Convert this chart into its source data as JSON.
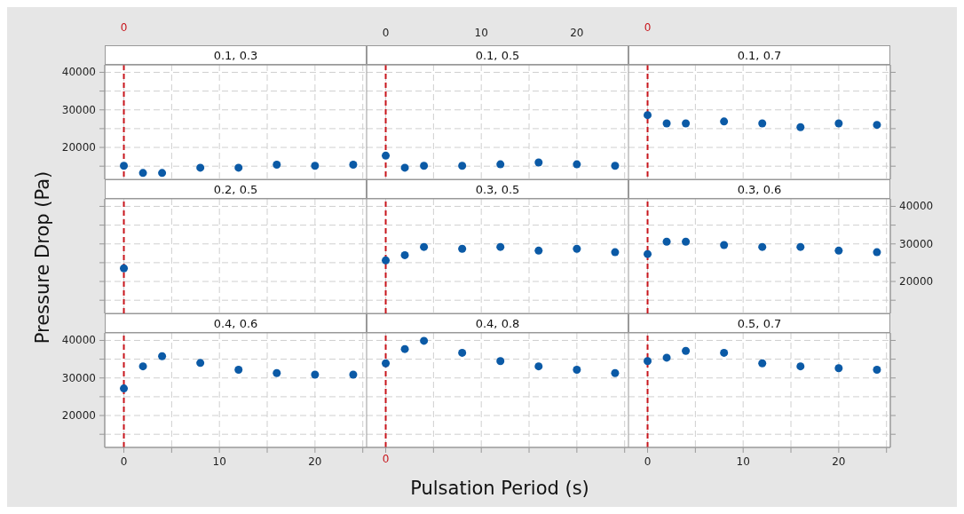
{
  "chart_data": [
    {
      "type": "scatter",
      "title": "0.1, 0.3",
      "x": [
        0,
        2,
        4,
        8,
        12,
        16,
        20,
        24
      ],
      "values": [
        15100,
        13200,
        13200,
        14600,
        14600,
        15400,
        15100,
        15400
      ],
      "color": "#0b5aa6",
      "marker": "circle",
      "xlim": [
        -2,
        25.4
      ],
      "ylim": [
        11500,
        42000
      ],
      "xticks": [
        0,
        {
          "value": 5,
          "label": null
        },
        10,
        {
          "value": 15,
          "label": null
        },
        20,
        {
          "value": 25,
          "label": null
        }
      ],
      "yticks": [
        {
          "value": 15000,
          "label": null
        },
        20000,
        {
          "value": 25000,
          "label": null
        },
        30000,
        {
          "value": 35000,
          "label": null
        },
        40000
      ],
      "grid": true,
      "tick_labels": "y",
      "ref_lines": [
        {
          "axis": "x",
          "value": 0,
          "label": "0",
          "color": "#c8161d",
          "line_style": "dashed"
        }
      ]
    },
    {
      "type": "scatter",
      "title": "0.1, 0.5",
      "x": [
        0,
        2,
        4,
        8,
        12,
        16,
        20,
        24
      ],
      "values": [
        17800,
        14600,
        15100,
        15100,
        15500,
        16000,
        15500,
        15100
      ],
      "color": "#0b5aa6",
      "marker": "circle",
      "xlim": [
        -2,
        25.4
      ],
      "ylim": [
        11500,
        42000
      ],
      "xticks": [
        0,
        {
          "value": 5,
          "label": null
        },
        10,
        {
          "value": 15,
          "label": null
        },
        20,
        {
          "value": 25,
          "label": null
        }
      ],
      "yticks": [
        {
          "value": 15000,
          "label": null
        },
        20000,
        {
          "value": 25000,
          "label": null
        },
        30000,
        {
          "value": 35000,
          "label": null
        },
        40000
      ],
      "grid": true,
      "tick_labels": "x",
      "ref_lines": [
        {
          "axis": "x",
          "value": 0,
          "color": "#c8161d",
          "line_style": "dashed"
        }
      ]
    },
    {
      "type": "scatter",
      "title": "0.1, 0.7",
      "x": [
        0,
        2,
        4,
        8,
        12,
        16,
        20,
        24
      ],
      "values": [
        28600,
        26400,
        26400,
        26900,
        26400,
        25400,
        26400,
        26000
      ],
      "color": "#0b5aa6",
      "marker": "circle",
      "xlim": [
        -2,
        25.4
      ],
      "ylim": [
        11500,
        42000
      ],
      "xticks": [
        0,
        {
          "value": 5,
          "label": null
        },
        10,
        {
          "value": 15,
          "label": null
        },
        20,
        {
          "value": 25,
          "label": null
        }
      ],
      "yticks": [
        {
          "value": 15000,
          "label": null
        },
        20000,
        {
          "value": 25000,
          "label": null
        },
        30000,
        {
          "value": 35000,
          "label": null
        },
        40000
      ],
      "grid": true,
      "tick_labels": false,
      "ref_lines": [
        {
          "axis": "x",
          "value": 0,
          "label": "0",
          "color": "#c8161d",
          "line_style": "dashed"
        }
      ]
    },
    {
      "type": "scatter",
      "title": "0.2, 0.5",
      "ylabel": "Pressure Drop (Pa)",
      "x": [
        0
      ],
      "values": [
        23500
      ],
      "color": "#0b5aa6",
      "marker": "circle",
      "xlim": [
        -2,
        25.4
      ],
      "ylim": [
        11500,
        42000
      ],
      "xticks": [
        0,
        {
          "value": 5,
          "label": null
        },
        10,
        {
          "value": 15,
          "label": null
        },
        20,
        {
          "value": 25,
          "label": null
        }
      ],
      "yticks": [
        {
          "value": 15000,
          "label": null
        },
        20000,
        {
          "value": 25000,
          "label": null
        },
        30000,
        {
          "value": 35000,
          "label": null
        },
        40000
      ],
      "grid": true,
      "tick_labels": false,
      "ref_lines": [
        {
          "axis": "x",
          "value": 0,
          "color": "#c8161d",
          "line_style": "dashed"
        }
      ]
    },
    {
      "type": "scatter",
      "title": "0.3, 0.5",
      "x": [
        0,
        2,
        4,
        8,
        12,
        16,
        20,
        24
      ],
      "values": [
        25600,
        27000,
        29200,
        28700,
        29200,
        28200,
        28700,
        27800
      ],
      "color": "#0b5aa6",
      "marker": "circle",
      "xlim": [
        -2,
        25.4
      ],
      "ylim": [
        11500,
        42000
      ],
      "xticks": [
        0,
        {
          "value": 5,
          "label": null
        },
        10,
        {
          "value": 15,
          "label": null
        },
        20,
        {
          "value": 25,
          "label": null
        }
      ],
      "yticks": [
        {
          "value": 15000,
          "label": null
        },
        20000,
        {
          "value": 25000,
          "label": null
        },
        30000,
        {
          "value": 35000,
          "label": null
        },
        40000
      ],
      "grid": true,
      "tick_labels": false,
      "ref_lines": [
        {
          "axis": "x",
          "value": 0,
          "color": "#c8161d",
          "line_style": "dashed"
        }
      ]
    },
    {
      "type": "scatter",
      "title": "0.3, 0.6",
      "x": [
        0,
        2,
        4,
        8,
        12,
        16,
        20,
        24
      ],
      "values": [
        27300,
        30600,
        30600,
        29700,
        29200,
        29200,
        28200,
        27800
      ],
      "color": "#0b5aa6",
      "marker": "circle",
      "xlim": [
        -2,
        25.4
      ],
      "ylim": [
        11500,
        42000
      ],
      "xticks": [
        0,
        {
          "value": 5,
          "label": null
        },
        10,
        {
          "value": 15,
          "label": null
        },
        20,
        {
          "value": 25,
          "label": null
        }
      ],
      "yticks": [
        {
          "value": 15000,
          "label": null
        },
        20000,
        {
          "value": 25000,
          "label": null
        },
        30000,
        {
          "value": 35000,
          "label": null
        },
        40000
      ],
      "grid": true,
      "tick_labels": "y",
      "ref_lines": [
        {
          "axis": "x",
          "value": 0,
          "color": "#c8161d",
          "line_style": "dashed"
        }
      ]
    },
    {
      "type": "scatter",
      "title": "0.4, 0.6",
      "x": [
        0,
        2,
        4,
        8,
        12,
        16,
        20,
        24
      ],
      "values": [
        27200,
        33100,
        35800,
        34000,
        32200,
        31300,
        30900,
        30900
      ],
      "color": "#0b5aa6",
      "marker": "circle",
      "xlim": [
        -2,
        25.4
      ],
      "ylim": [
        11500,
        42000
      ],
      "xticks": [
        0,
        {
          "value": 5,
          "label": null
        },
        10,
        {
          "value": 15,
          "label": null
        },
        20,
        {
          "value": 25,
          "label": null
        }
      ],
      "yticks": [
        {
          "value": 15000,
          "label": null
        },
        20000,
        {
          "value": 25000,
          "label": null
        },
        30000,
        {
          "value": 35000,
          "label": null
        },
        40000
      ],
      "grid": true,
      "ref_lines": [
        {
          "axis": "x",
          "value": 0,
          "color": "#c8161d",
          "line_style": "dashed"
        }
      ]
    },
    {
      "type": "scatter",
      "title": "0.4, 0.8",
      "xlabel": "Pulsation Period (s)",
      "x": [
        0,
        2,
        4,
        8,
        12,
        16,
        20,
        24
      ],
      "values": [
        33900,
        37700,
        39900,
        36700,
        34500,
        33100,
        32200,
        31300
      ],
      "color": "#0b5aa6",
      "marker": "circle",
      "xlim": [
        -2,
        25.4
      ],
      "ylim": [
        11500,
        42000
      ],
      "xticks": [
        0,
        {
          "value": 5,
          "label": null
        },
        10,
        {
          "value": 15,
          "label": null
        },
        20,
        {
          "value": 25,
          "label": null
        }
      ],
      "yticks": [
        {
          "value": 15000,
          "label": null
        },
        20000,
        {
          "value": 25000,
          "label": null
        },
        30000,
        {
          "value": 35000,
          "label": null
        },
        40000
      ],
      "grid": true,
      "tick_labels": false,
      "ref_lines": [
        {
          "axis": "x",
          "value": 0,
          "label": "0",
          "color": "#c8161d",
          "line_style": "dashed"
        }
      ]
    },
    {
      "type": "scatter",
      "title": "0.5, 0.7",
      "x": [
        0,
        2,
        4,
        8,
        12,
        16,
        20,
        24
      ],
      "values": [
        34500,
        35400,
        37200,
        36700,
        33900,
        33100,
        32600,
        32200
      ],
      "color": "#0b5aa6",
      "marker": "circle",
      "xlim": [
        -2,
        25.4
      ],
      "ylim": [
        11500,
        42000
      ],
      "xticks": [
        0,
        {
          "value": 5,
          "label": null
        },
        10,
        {
          "value": 15,
          "label": null
        },
        20,
        {
          "value": 25,
          "label": null
        }
      ],
      "yticks": [
        {
          "value": 15000,
          "label": null
        },
        20000,
        {
          "value": 25000,
          "label": null
        },
        30000,
        {
          "value": 35000,
          "label": null
        },
        40000
      ],
      "grid": true,
      "tick_labels": "x",
      "ref_lines": [
        {
          "axis": "x",
          "value": 0,
          "color": "#c8161d",
          "line_style": "dashed"
        }
      ]
    }
  ]
}
